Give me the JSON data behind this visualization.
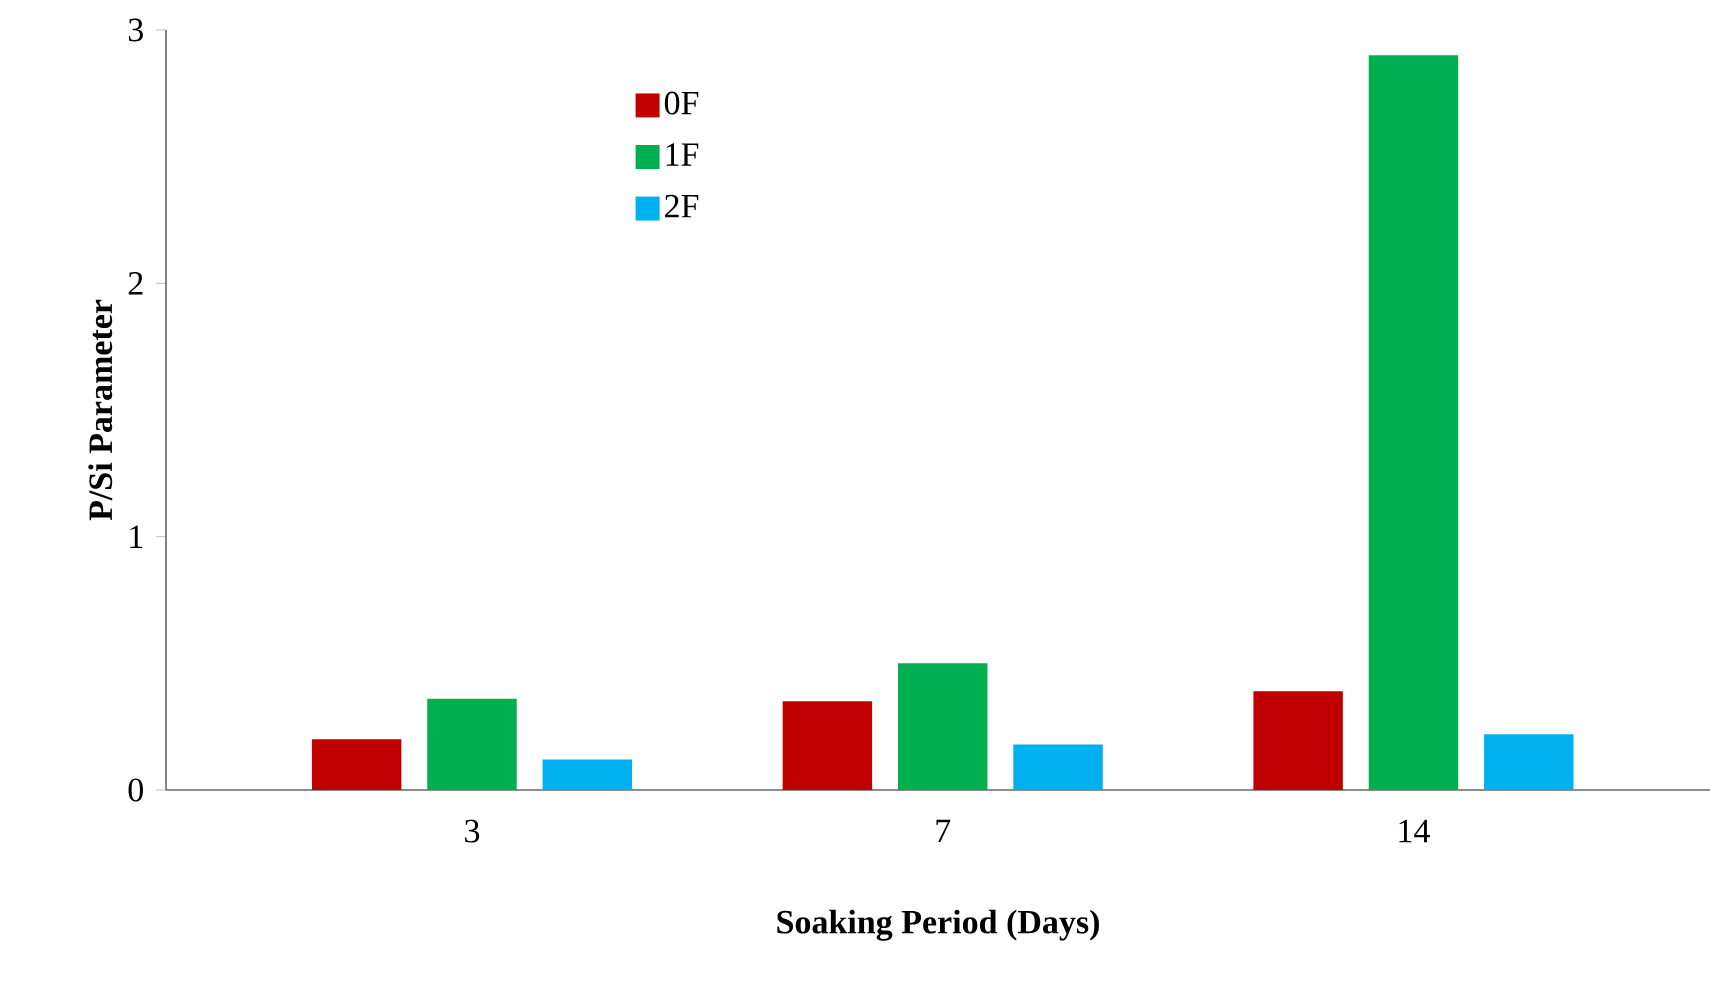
{
  "chart_data": {
    "type": "bar",
    "xlabel": "Soaking Period (Days)",
    "ylabel": "P/Si Parameter",
    "categories": [
      "3",
      "7",
      "14"
    ],
    "series": [
      {
        "name": "0F",
        "color": "#c00000",
        "values": [
          0.2,
          0.35,
          0.39
        ]
      },
      {
        "name": "1F",
        "color": "#00b050",
        "values": [
          0.36,
          0.5,
          2.9
        ]
      },
      {
        "name": "2F",
        "color": "#00b0f0",
        "values": [
          0.12,
          0.18,
          0.22
        ]
      }
    ],
    "ylim": [
      0,
      3
    ],
    "yticks": [
      0,
      1,
      2,
      3
    ],
    "grid": false,
    "legend": "top left"
  }
}
